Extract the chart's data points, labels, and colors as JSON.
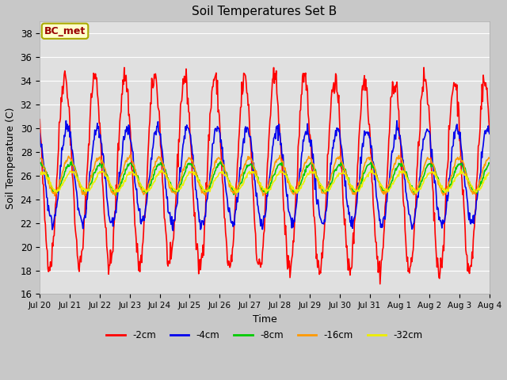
{
  "title": "Soil Temperatures Set B",
  "xlabel": "Time",
  "ylabel": "Soil Temperature (C)",
  "ylim": [
    16,
    39
  ],
  "yticks": [
    16,
    18,
    20,
    22,
    24,
    26,
    28,
    30,
    32,
    34,
    36,
    38
  ],
  "xtick_labels": [
    "Jul 20",
    "Jul 21",
    "Jul 22",
    "Jul 23",
    "Jul 24",
    "Jul 25",
    "Jul 26",
    "Jul 27",
    "Jul 28",
    "Jul 29",
    "Jul 30",
    "Jul 31",
    "Aug 1",
    "Aug 2",
    "Aug 3",
    "Aug 4"
  ],
  "annotation_text": "BC_met",
  "annotation_bg": "#ffffcc",
  "annotation_border": "#aaaa00",
  "annotation_text_color": "#990000",
  "series_colors": [
    "#ff0000",
    "#0000ee",
    "#00cc00",
    "#ff9900",
    "#eeee00"
  ],
  "series_labels": [
    "-2cm",
    "-4cm",
    "-8cm",
    "-16cm",
    "-32cm"
  ],
  "fig_bg_color": "#c8c8c8",
  "plot_bg_color": "#e0e0e0",
  "n_days": 15,
  "points_per_day": 48,
  "amplitudes": [
    8.0,
    4.0,
    1.2,
    1.5,
    0.8
  ],
  "phase_shifts_hours": [
    0.0,
    2.0,
    4.5,
    3.5,
    5.5
  ],
  "mean_temps": [
    26.5,
    26.0,
    25.8,
    26.0,
    25.5
  ],
  "trend": [
    -0.04,
    -0.01,
    0.0,
    0.0,
    0.0
  ]
}
